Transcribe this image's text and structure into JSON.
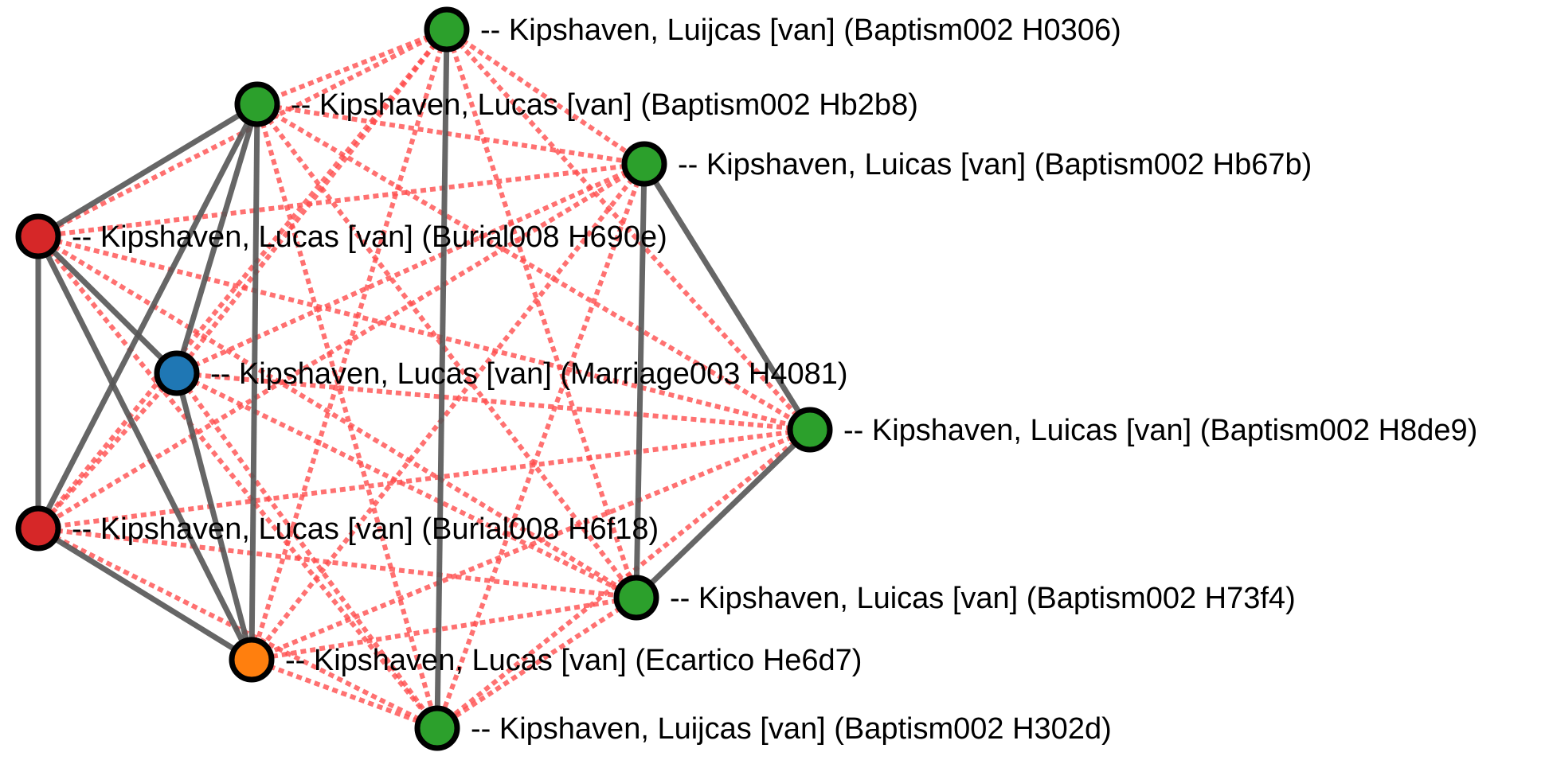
{
  "graph": {
    "colors": {
      "baptism": "#2ca02c",
      "burial": "#d62728",
      "marriage": "#1f77b4",
      "ecartico": "#ff7f0e",
      "node_border": "#000000",
      "solid_edge": "#555555",
      "dashed_edge": "#ff4d4d"
    },
    "nodes": [
      {
        "id": "H0306",
        "label": "-- Kipshaven, Luijcas [van] (Baptism002 H0306)",
        "kind": "baptism"
      },
      {
        "id": "Hb2b8",
        "label": "-- Kipshaven, Lucas [van] (Baptism002 Hb2b8)",
        "kind": "baptism"
      },
      {
        "id": "Hb67b",
        "label": "-- Kipshaven, Luicas [van] (Baptism002 Hb67b)",
        "kind": "baptism"
      },
      {
        "id": "H690e",
        "label": "-- Kipshaven, Lucas [van] (Burial008 H690e)",
        "kind": "burial"
      },
      {
        "id": "H4081",
        "label": "-- Kipshaven, Lucas [van] (Marriage003 H4081)",
        "kind": "marriage"
      },
      {
        "id": "H8de9",
        "label": "-- Kipshaven, Luicas [van] (Baptism002 H8de9)",
        "kind": "baptism"
      },
      {
        "id": "H6f18",
        "label": "-- Kipshaven, Lucas [van] (Burial008 H6f18)",
        "kind": "burial"
      },
      {
        "id": "H73f4",
        "label": "-- Kipshaven, Luicas [van] (Baptism002 H73f4)",
        "kind": "baptism"
      },
      {
        "id": "He6d7",
        "label": "-- Kipshaven, Lucas [van] (Ecartico He6d7)",
        "kind": "ecartico"
      },
      {
        "id": "H302d",
        "label": "-- Kipshaven, Luijcas [van] (Baptism002 H302d)",
        "kind": "baptism"
      }
    ],
    "solid_edges": [
      [
        "H0306",
        "H302d"
      ],
      [
        "Hb2b8",
        "H690e"
      ],
      [
        "Hb2b8",
        "H4081"
      ],
      [
        "Hb2b8",
        "H6f18"
      ],
      [
        "Hb2b8",
        "He6d7"
      ],
      [
        "H690e",
        "H4081"
      ],
      [
        "H690e",
        "H6f18"
      ],
      [
        "H690e",
        "He6d7"
      ],
      [
        "H4081",
        "He6d7"
      ],
      [
        "H6f18",
        "He6d7"
      ],
      [
        "Hb67b",
        "H8de9"
      ],
      [
        "Hb67b",
        "H73f4"
      ],
      [
        "H8de9",
        "H73f4"
      ]
    ],
    "dashed_edges": "all-other-pairs"
  }
}
